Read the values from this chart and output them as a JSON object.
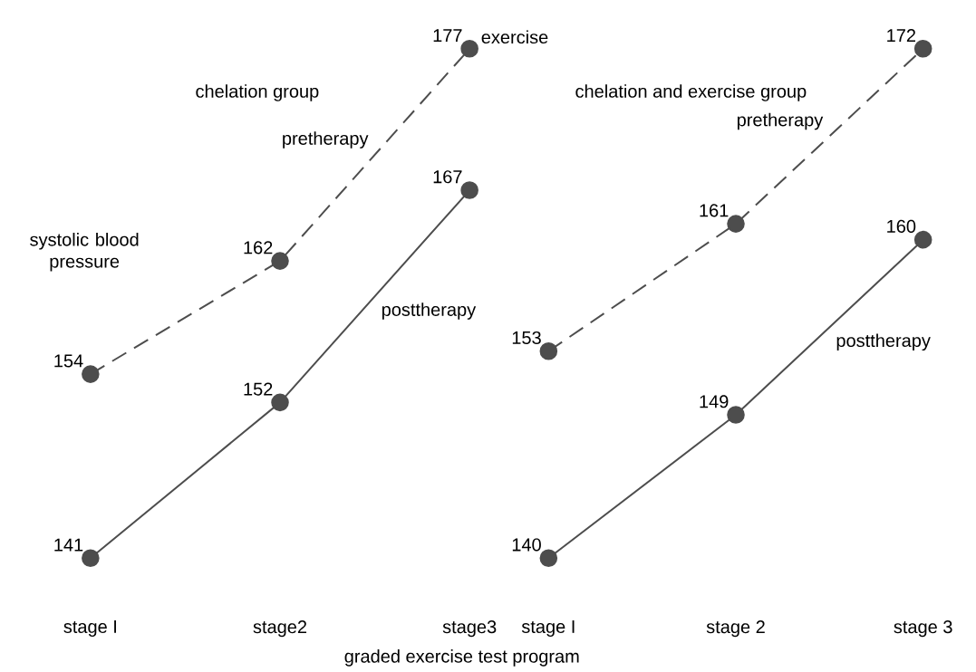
{
  "chart_data": [
    {
      "type": "line",
      "title": "chelation group",
      "ylabel": "systolic blood pressure",
      "xlabel": "graded exercise test program",
      "annotations": [
        "exercise"
      ],
      "categories": [
        "stage I",
        "stage2",
        "stage3"
      ],
      "data_labels": true,
      "marker": "circle",
      "series": [
        {
          "name": "pretherapy",
          "color": "#4d4d4d",
          "line_style": "dashed",
          "values": [
            154,
            162,
            177
          ]
        },
        {
          "name": "posttherapy",
          "color": "#4d4d4d",
          "line_style": "solid",
          "values": [
            141,
            152,
            167
          ]
        }
      ]
    },
    {
      "type": "line",
      "title": "chelation and exercise group",
      "categories": [
        "stage I",
        "stage 2",
        "stage 3"
      ],
      "data_labels": true,
      "marker": "circle",
      "series": [
        {
          "name": "pretherapy",
          "color": "#4d4d4d",
          "line_style": "dashed",
          "values": [
            153,
            161,
            172
          ]
        },
        {
          "name": "posttherapy",
          "color": "#4d4d4d",
          "line_style": "solid",
          "values": [
            140,
            149,
            160
          ]
        }
      ]
    }
  ]
}
